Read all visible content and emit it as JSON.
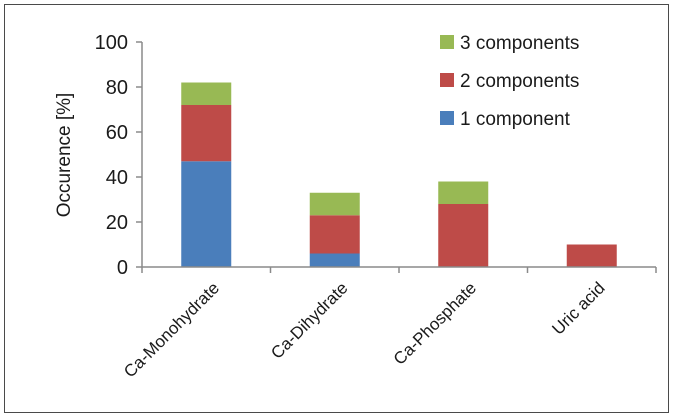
{
  "chart_data": {
    "type": "bar",
    "stacked": true,
    "title": "",
    "xlabel": "",
    "ylabel": "Occurence [%]",
    "ylim": [
      0,
      100
    ],
    "yticks": [
      0,
      20,
      40,
      60,
      80,
      100
    ],
    "grid": false,
    "legend_position": "top-right",
    "categories": [
      "Ca-Monohydrate",
      "Ca-Dihydrate",
      "Ca-Phosphate",
      "Uric acid"
    ],
    "series": [
      {
        "name": "1 component",
        "color": "#4a7ebb",
        "values": [
          47,
          6,
          0,
          0
        ]
      },
      {
        "name": "2 components",
        "color": "#be4b48",
        "values": [
          25,
          17,
          28,
          10
        ]
      },
      {
        "name": "3 components",
        "color": "#98b954",
        "values": [
          10,
          10,
          10,
          0
        ]
      }
    ],
    "legend_order": [
      "3 components",
      "2 components",
      "1 component"
    ]
  }
}
